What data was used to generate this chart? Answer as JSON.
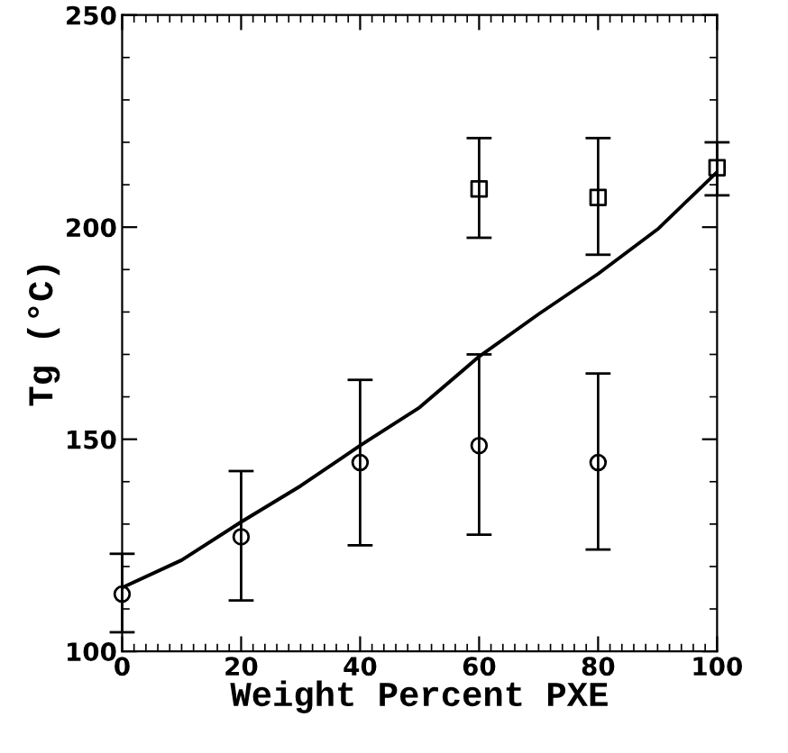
{
  "chart_data": {
    "type": "scatter",
    "xlabel": "Weight Percent PXE",
    "ylabel": "Tg (°C)",
    "xlim": [
      0,
      100
    ],
    "xticks": [
      0,
      20,
      40,
      60,
      80,
      100
    ],
    "ylim": [
      100,
      250
    ],
    "yticks": [
      100,
      150,
      200,
      250
    ],
    "grid": false,
    "legend": false,
    "series": [
      {
        "marker": "circle",
        "color": "#000000",
        "x": [
          0,
          20,
          40,
          60,
          80
        ],
        "values": [
          113.5,
          127,
          144.5,
          148.5,
          144.5
        ],
        "errors": [
          [
            104.5,
            123
          ],
          [
            112,
            142.5
          ],
          [
            125,
            164
          ],
          [
            127.5,
            170
          ],
          [
            124,
            165.5
          ]
        ]
      },
      {
        "marker": "square",
        "color": "#000000",
        "x": [
          60,
          80,
          100
        ],
        "values": [
          209,
          207,
          214
        ],
        "errors": [
          [
            197.5,
            221
          ],
          [
            193.5,
            221
          ],
          [
            207.5,
            220
          ]
        ]
      },
      {
        "type": "line",
        "marker": "none",
        "line_style": "solid",
        "color": "#000000",
        "x": [
          0,
          10,
          20,
          30,
          40,
          50,
          60,
          70,
          80,
          90,
          100
        ],
        "values": [
          115,
          121.5,
          130.5,
          139,
          148.5,
          157.5,
          169.5,
          179.5,
          189,
          199.5,
          213
        ]
      }
    ]
  }
}
